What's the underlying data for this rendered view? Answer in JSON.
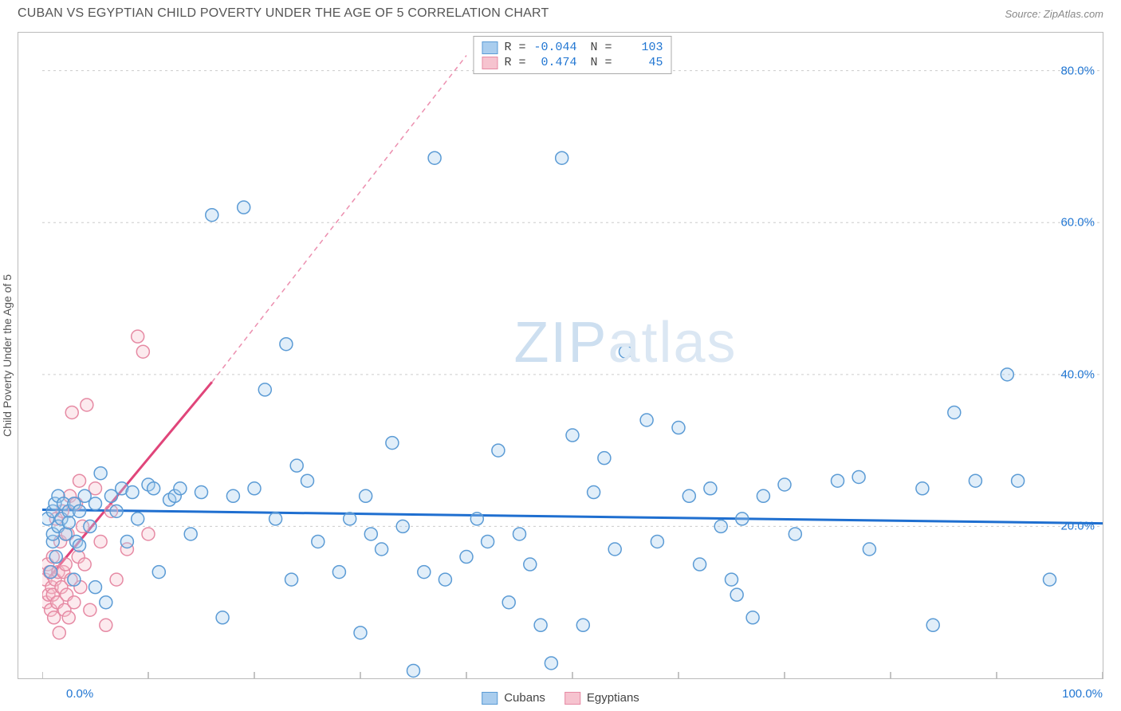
{
  "header": {
    "title": "CUBAN VS EGYPTIAN CHILD POVERTY UNDER THE AGE OF 5 CORRELATION CHART",
    "source": "Source: ZipAtlas.com"
  },
  "ylabel": "Child Poverty Under the Age of 5",
  "watermark": {
    "part1": "ZIP",
    "part2": "atlas"
  },
  "chart": {
    "type": "scatter",
    "background_color": "#ffffff",
    "grid_color": "#cccccc",
    "border_color": "#bbbbbb",
    "xlim": [
      0,
      100
    ],
    "ylim": [
      0,
      85
    ],
    "xtick_positions": [
      0,
      10,
      20,
      30,
      40,
      50,
      60,
      70,
      80,
      90,
      100
    ],
    "ytick_labels": [
      {
        "pos": 20,
        "label": "20.0%"
      },
      {
        "pos": 40,
        "label": "40.0%"
      },
      {
        "pos": 60,
        "label": "60.0%"
      },
      {
        "pos": 80,
        "label": "80.0%"
      }
    ],
    "xaxis_labels": {
      "left": "0.0%",
      "right": "100.0%"
    },
    "marker_radius": 8,
    "marker_stroke_width": 1.5,
    "marker_fill_opacity": 0.35,
    "trend_line_width": 3,
    "trend_dash": "6 5"
  },
  "series": {
    "cubans": {
      "label": "Cubans",
      "fill": "#a9cdee",
      "stroke": "#5b9bd5",
      "R": "-0.044",
      "N": "103",
      "trend": {
        "color": "#1f6fd0",
        "x1": 0,
        "y1": 22.2,
        "x2": 100,
        "y2": 20.4,
        "dash_extend": false
      },
      "points": [
        [
          0.5,
          21
        ],
        [
          0.8,
          14
        ],
        [
          1,
          18
        ],
        [
          1,
          22
        ],
        [
          1,
          19
        ],
        [
          1.2,
          23
        ],
        [
          1.3,
          16
        ],
        [
          1.5,
          20
        ],
        [
          1.5,
          24
        ],
        [
          1.8,
          21
        ],
        [
          2,
          23
        ],
        [
          2.2,
          19
        ],
        [
          2.5,
          22
        ],
        [
          2.5,
          20.5
        ],
        [
          3,
          23
        ],
        [
          3,
          13
        ],
        [
          3.2,
          18
        ],
        [
          3.5,
          17.5
        ],
        [
          3.5,
          22
        ],
        [
          4,
          24
        ],
        [
          4.5,
          20
        ],
        [
          5,
          23
        ],
        [
          5,
          12
        ],
        [
          5.5,
          27
        ],
        [
          6,
          10
        ],
        [
          6.5,
          24
        ],
        [
          7,
          22
        ],
        [
          7.5,
          25
        ],
        [
          8,
          18
        ],
        [
          8.5,
          24.5
        ],
        [
          9,
          21
        ],
        [
          10,
          25.5
        ],
        [
          10.5,
          25
        ],
        [
          11,
          14
        ],
        [
          12,
          23.5
        ],
        [
          12.5,
          24
        ],
        [
          13,
          25
        ],
        [
          14,
          19
        ],
        [
          15,
          24.5
        ],
        [
          16,
          61
        ],
        [
          17,
          8
        ],
        [
          18,
          24
        ],
        [
          19,
          62
        ],
        [
          20,
          25
        ],
        [
          21,
          38
        ],
        [
          22,
          21
        ],
        [
          23,
          44
        ],
        [
          23.5,
          13
        ],
        [
          24,
          28
        ],
        [
          25,
          26
        ],
        [
          26,
          18
        ],
        [
          28,
          14
        ],
        [
          29,
          21
        ],
        [
          30,
          6
        ],
        [
          30.5,
          24
        ],
        [
          31,
          19
        ],
        [
          32,
          17
        ],
        [
          33,
          31
        ],
        [
          34,
          20
        ],
        [
          35,
          1
        ],
        [
          36,
          14
        ],
        [
          37,
          68.5
        ],
        [
          38,
          13
        ],
        [
          40,
          16
        ],
        [
          41,
          21
        ],
        [
          42,
          18
        ],
        [
          43,
          30
        ],
        [
          44,
          10
        ],
        [
          45,
          19
        ],
        [
          46,
          15
        ],
        [
          47,
          7
        ],
        [
          48,
          2
        ],
        [
          49,
          68.5
        ],
        [
          50,
          32
        ],
        [
          51,
          7
        ],
        [
          52,
          24.5
        ],
        [
          53,
          29
        ],
        [
          54,
          17
        ],
        [
          55,
          43
        ],
        [
          57,
          34
        ],
        [
          58,
          18
        ],
        [
          60,
          33
        ],
        [
          61,
          24
        ],
        [
          62,
          15
        ],
        [
          63,
          25
        ],
        [
          64,
          20
        ],
        [
          65,
          13
        ],
        [
          65.5,
          11
        ],
        [
          66,
          21
        ],
        [
          67,
          8
        ],
        [
          68,
          24
        ],
        [
          70,
          25.5
        ],
        [
          71,
          19
        ],
        [
          75,
          26
        ],
        [
          77,
          26.5
        ],
        [
          78,
          17
        ],
        [
          83,
          25
        ],
        [
          84,
          7
        ],
        [
          86,
          35
        ],
        [
          88,
          26
        ],
        [
          91,
          40
        ],
        [
          92,
          26
        ],
        [
          95,
          13
        ]
      ]
    },
    "egyptians": {
      "label": "Egyptians",
      "fill": "#f6c3cf",
      "stroke": "#e68aa4",
      "R": "0.474",
      "N": "45",
      "trend": {
        "color": "#e0457a",
        "x1": 0.5,
        "y1": 13,
        "x2": 16,
        "y2": 39,
        "dash_extend": true,
        "dash_x2": 40,
        "dash_y2": 82
      },
      "points": [
        [
          0.3,
          13
        ],
        [
          0.4,
          10
        ],
        [
          0.5,
          15
        ],
        [
          0.6,
          11
        ],
        [
          0.7,
          14
        ],
        [
          0.8,
          9
        ],
        [
          0.9,
          12
        ],
        [
          1,
          16
        ],
        [
          1,
          11
        ],
        [
          1.1,
          8
        ],
        [
          1.2,
          13
        ],
        [
          1.3,
          21
        ],
        [
          1.4,
          10
        ],
        [
          1.5,
          14
        ],
        [
          1.6,
          6
        ],
        [
          1.7,
          18
        ],
        [
          1.8,
          12
        ],
        [
          1.9,
          22
        ],
        [
          2,
          14
        ],
        [
          2.1,
          9
        ],
        [
          2.2,
          15
        ],
        [
          2.3,
          11
        ],
        [
          2.4,
          19
        ],
        [
          2.5,
          8
        ],
        [
          2.6,
          24
        ],
        [
          2.7,
          13
        ],
        [
          2.8,
          35
        ],
        [
          3,
          10
        ],
        [
          3.2,
          23
        ],
        [
          3.4,
          16
        ],
        [
          3.5,
          26
        ],
        [
          3.6,
          12
        ],
        [
          3.8,
          20
        ],
        [
          4,
          15
        ],
        [
          4.2,
          36
        ],
        [
          4.5,
          9
        ],
        [
          5,
          25
        ],
        [
          5.5,
          18
        ],
        [
          6,
          7
        ],
        [
          6.5,
          22
        ],
        [
          7,
          13
        ],
        [
          8,
          17
        ],
        [
          9,
          45
        ],
        [
          9.5,
          43
        ],
        [
          10,
          19
        ]
      ]
    }
  },
  "legend": {
    "items": [
      {
        "key": "cubans",
        "label": "Cubans"
      },
      {
        "key": "egyptians",
        "label": "Egyptians"
      }
    ]
  }
}
